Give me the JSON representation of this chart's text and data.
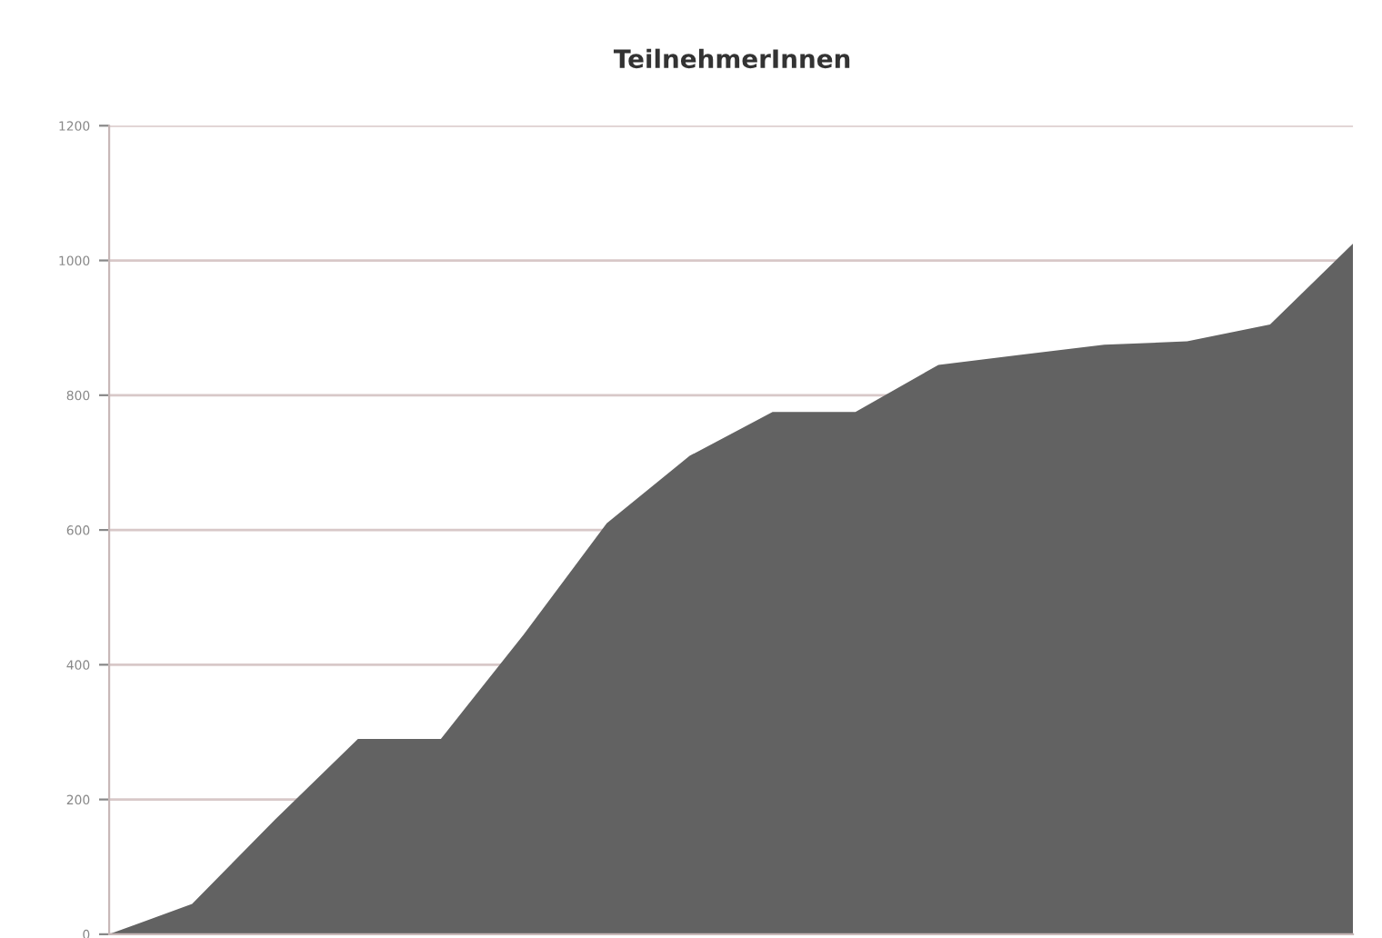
{
  "chart_data": {
    "type": "area",
    "title": "TeilnehmerInnen",
    "categories": [
      null,
      null,
      null,
      null,
      null,
      null,
      null,
      null,
      null,
      null,
      null,
      null,
      null,
      null,
      null,
      null
    ],
    "series": [
      {
        "color": "#626262",
        "values": [
          0,
          45,
          170,
          290,
          290,
          445,
          610,
          710,
          775,
          775,
          845,
          860,
          875,
          880,
          905,
          1025
        ]
      }
    ],
    "ylim": [
      0,
      1200
    ],
    "yticks": [
      0,
      200,
      400,
      600,
      800,
      1000,
      1200
    ],
    "grid": "y"
  }
}
